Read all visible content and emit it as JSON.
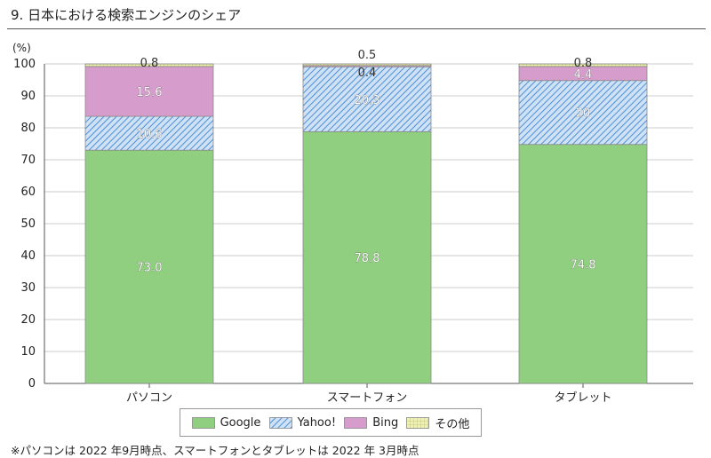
{
  "page": {
    "title": "9. 日本における検索エンジンのシェア",
    "note": "※パソコンは 2022 年9月時点、スマートフォンとタブレットは 2022 年 3月時点"
  },
  "chart_data": {
    "type": "bar",
    "stacked": true,
    "unit_label": "(%)",
    "categories": [
      "パソコン",
      "スマートフォン",
      "タブレット"
    ],
    "ylim": [
      0,
      100
    ],
    "yticks": [
      0,
      10,
      20,
      30,
      40,
      50,
      60,
      70,
      80,
      90,
      100
    ],
    "grid": true,
    "legend_position": "bottom",
    "series": [
      {
        "name": "Google",
        "values": [
          73.0,
          78.8,
          74.8
        ],
        "labels": [
          "73.0",
          "78.8",
          "74.8"
        ],
        "color": "#8fcf7f",
        "pattern": "solid"
      },
      {
        "name": "Yahoo!",
        "values": [
          10.6,
          20.3,
          20
        ],
        "labels": [
          "10.6",
          "20.3",
          "20"
        ],
        "color": "#7fb0e0",
        "pattern": "hatch"
      },
      {
        "name": "Bing",
        "values": [
          15.6,
          0.4,
          4.4
        ],
        "labels": [
          "15.6",
          "0.4",
          "4.4"
        ],
        "color": "#d59ccc",
        "pattern": "solid"
      },
      {
        "name": "その他",
        "values": [
          0.8,
          0.5,
          0.8
        ],
        "labels": [
          "0.8",
          "0.5",
          "0.8"
        ],
        "color": "#e9e39a",
        "pattern": "grid"
      }
    ]
  }
}
